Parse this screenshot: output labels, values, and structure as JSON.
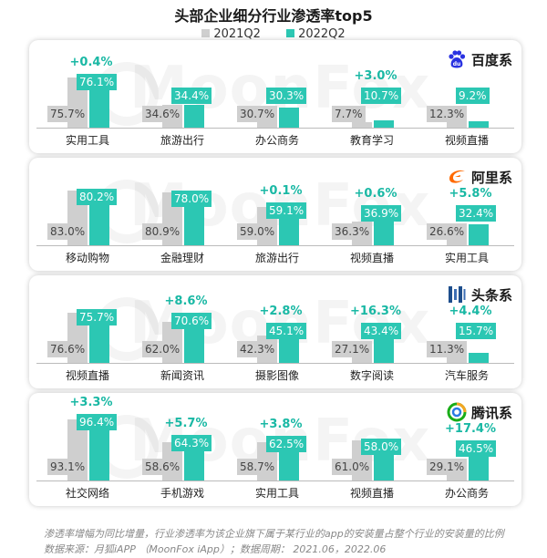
{
  "title": "头部企业细分行业渗透率top5",
  "legend": [
    {
      "name": "2021Q2",
      "color": "#cfcfcf"
    },
    {
      "name": "2022Q2",
      "color": "#2cc7b3"
    }
  ],
  "watermark": "MoonFox",
  "chart_data": [
    {
      "type": "bar",
      "company": "百度系",
      "logo_icon": "baidu-paw-icon",
      "categories": [
        "实用工具",
        "旅游出行",
        "办公商务",
        "教育学习",
        "视频直播"
      ],
      "series": [
        {
          "name": "2021Q2",
          "values": [
            75.7,
            34.6,
            30.7,
            7.7,
            12.3
          ],
          "labels": [
            "75.7%",
            "34.6%",
            "30.7%",
            "7.7%",
            "12.3%"
          ]
        },
        {
          "name": "2022Q2",
          "values": [
            76.1,
            34.4,
            30.3,
            10.7,
            9.2
          ],
          "labels": [
            "76.1%",
            "34.4%",
            "30.3%",
            "10.7%",
            "9.2%"
          ]
        }
      ],
      "growth": [
        "+0.4%",
        "",
        "",
        "+3.0%",
        ""
      ]
    },
    {
      "type": "bar",
      "company": "阿里系",
      "logo_icon": "alibaba-logo-icon",
      "categories": [
        "移动购物",
        "金融理财",
        "旅游出行",
        "视频直播",
        "实用工具"
      ],
      "series": [
        {
          "name": "2021Q2",
          "values": [
            83.0,
            80.9,
            59.0,
            36.3,
            26.6
          ],
          "labels": [
            "83.0%",
            "80.9%",
            "59.0%",
            "36.3%",
            "26.6%"
          ]
        },
        {
          "name": "2022Q2",
          "values": [
            80.2,
            78.0,
            59.1,
            36.9,
            32.4
          ],
          "labels": [
            "80.2%",
            "78.0%",
            "59.1%",
            "36.9%",
            "32.4%"
          ]
        }
      ],
      "growth": [
        "",
        "",
        "+0.1%",
        "+0.6%",
        "+5.8%"
      ]
    },
    {
      "type": "bar",
      "company": "头条系",
      "logo_icon": "toutiao-logo-icon",
      "categories": [
        "视频直播",
        "新闻资讯",
        "摄影图像",
        "数字阅读",
        "汽车服务"
      ],
      "series": [
        {
          "name": "2021Q2",
          "values": [
            76.6,
            62.0,
            42.3,
            27.1,
            11.3
          ],
          "labels": [
            "76.6%",
            "62.0%",
            "42.3%",
            "27.1%",
            "11.3%"
          ]
        },
        {
          "name": "2022Q2",
          "values": [
            75.7,
            70.6,
            45.1,
            43.4,
            15.7
          ],
          "labels": [
            "75.7%",
            "70.6%",
            "45.1%",
            "43.4%",
            "15.7%"
          ]
        }
      ],
      "growth": [
        "",
        "+8.6%",
        "+2.8%",
        "+16.3%",
        "+4.4%"
      ]
    },
    {
      "type": "bar",
      "company": "腾讯系",
      "logo_icon": "tencent-logo-icon",
      "categories": [
        "社交网络",
        "手机游戏",
        "实用工具",
        "视频直播",
        "办公商务"
      ],
      "series": [
        {
          "name": "2021Q2",
          "values": [
            93.1,
            58.6,
            58.7,
            61.0,
            29.1
          ],
          "labels": [
            "93.1%",
            "58.6%",
            "58.7%",
            "61.0%",
            "29.1%"
          ]
        },
        {
          "name": "2022Q2",
          "values": [
            96.4,
            64.3,
            62.5,
            58.0,
            46.5
          ],
          "labels": [
            "96.4%",
            "64.3%",
            "62.5%",
            "58.0%",
            "46.5%"
          ]
        }
      ],
      "growth": [
        "+3.3%",
        "+5.7%",
        "+3.8%",
        "",
        "+17.4%"
      ]
    }
  ],
  "footnotes": [
    "渗透率增幅为同比增量，行业渗透率为该企业旗下属于某行业的app的安装量占整个行业的安装量的比例",
    "数据来源：月狐iAPP （MoonFox iApp）；数据周期： 2021.06，2022.06"
  ]
}
